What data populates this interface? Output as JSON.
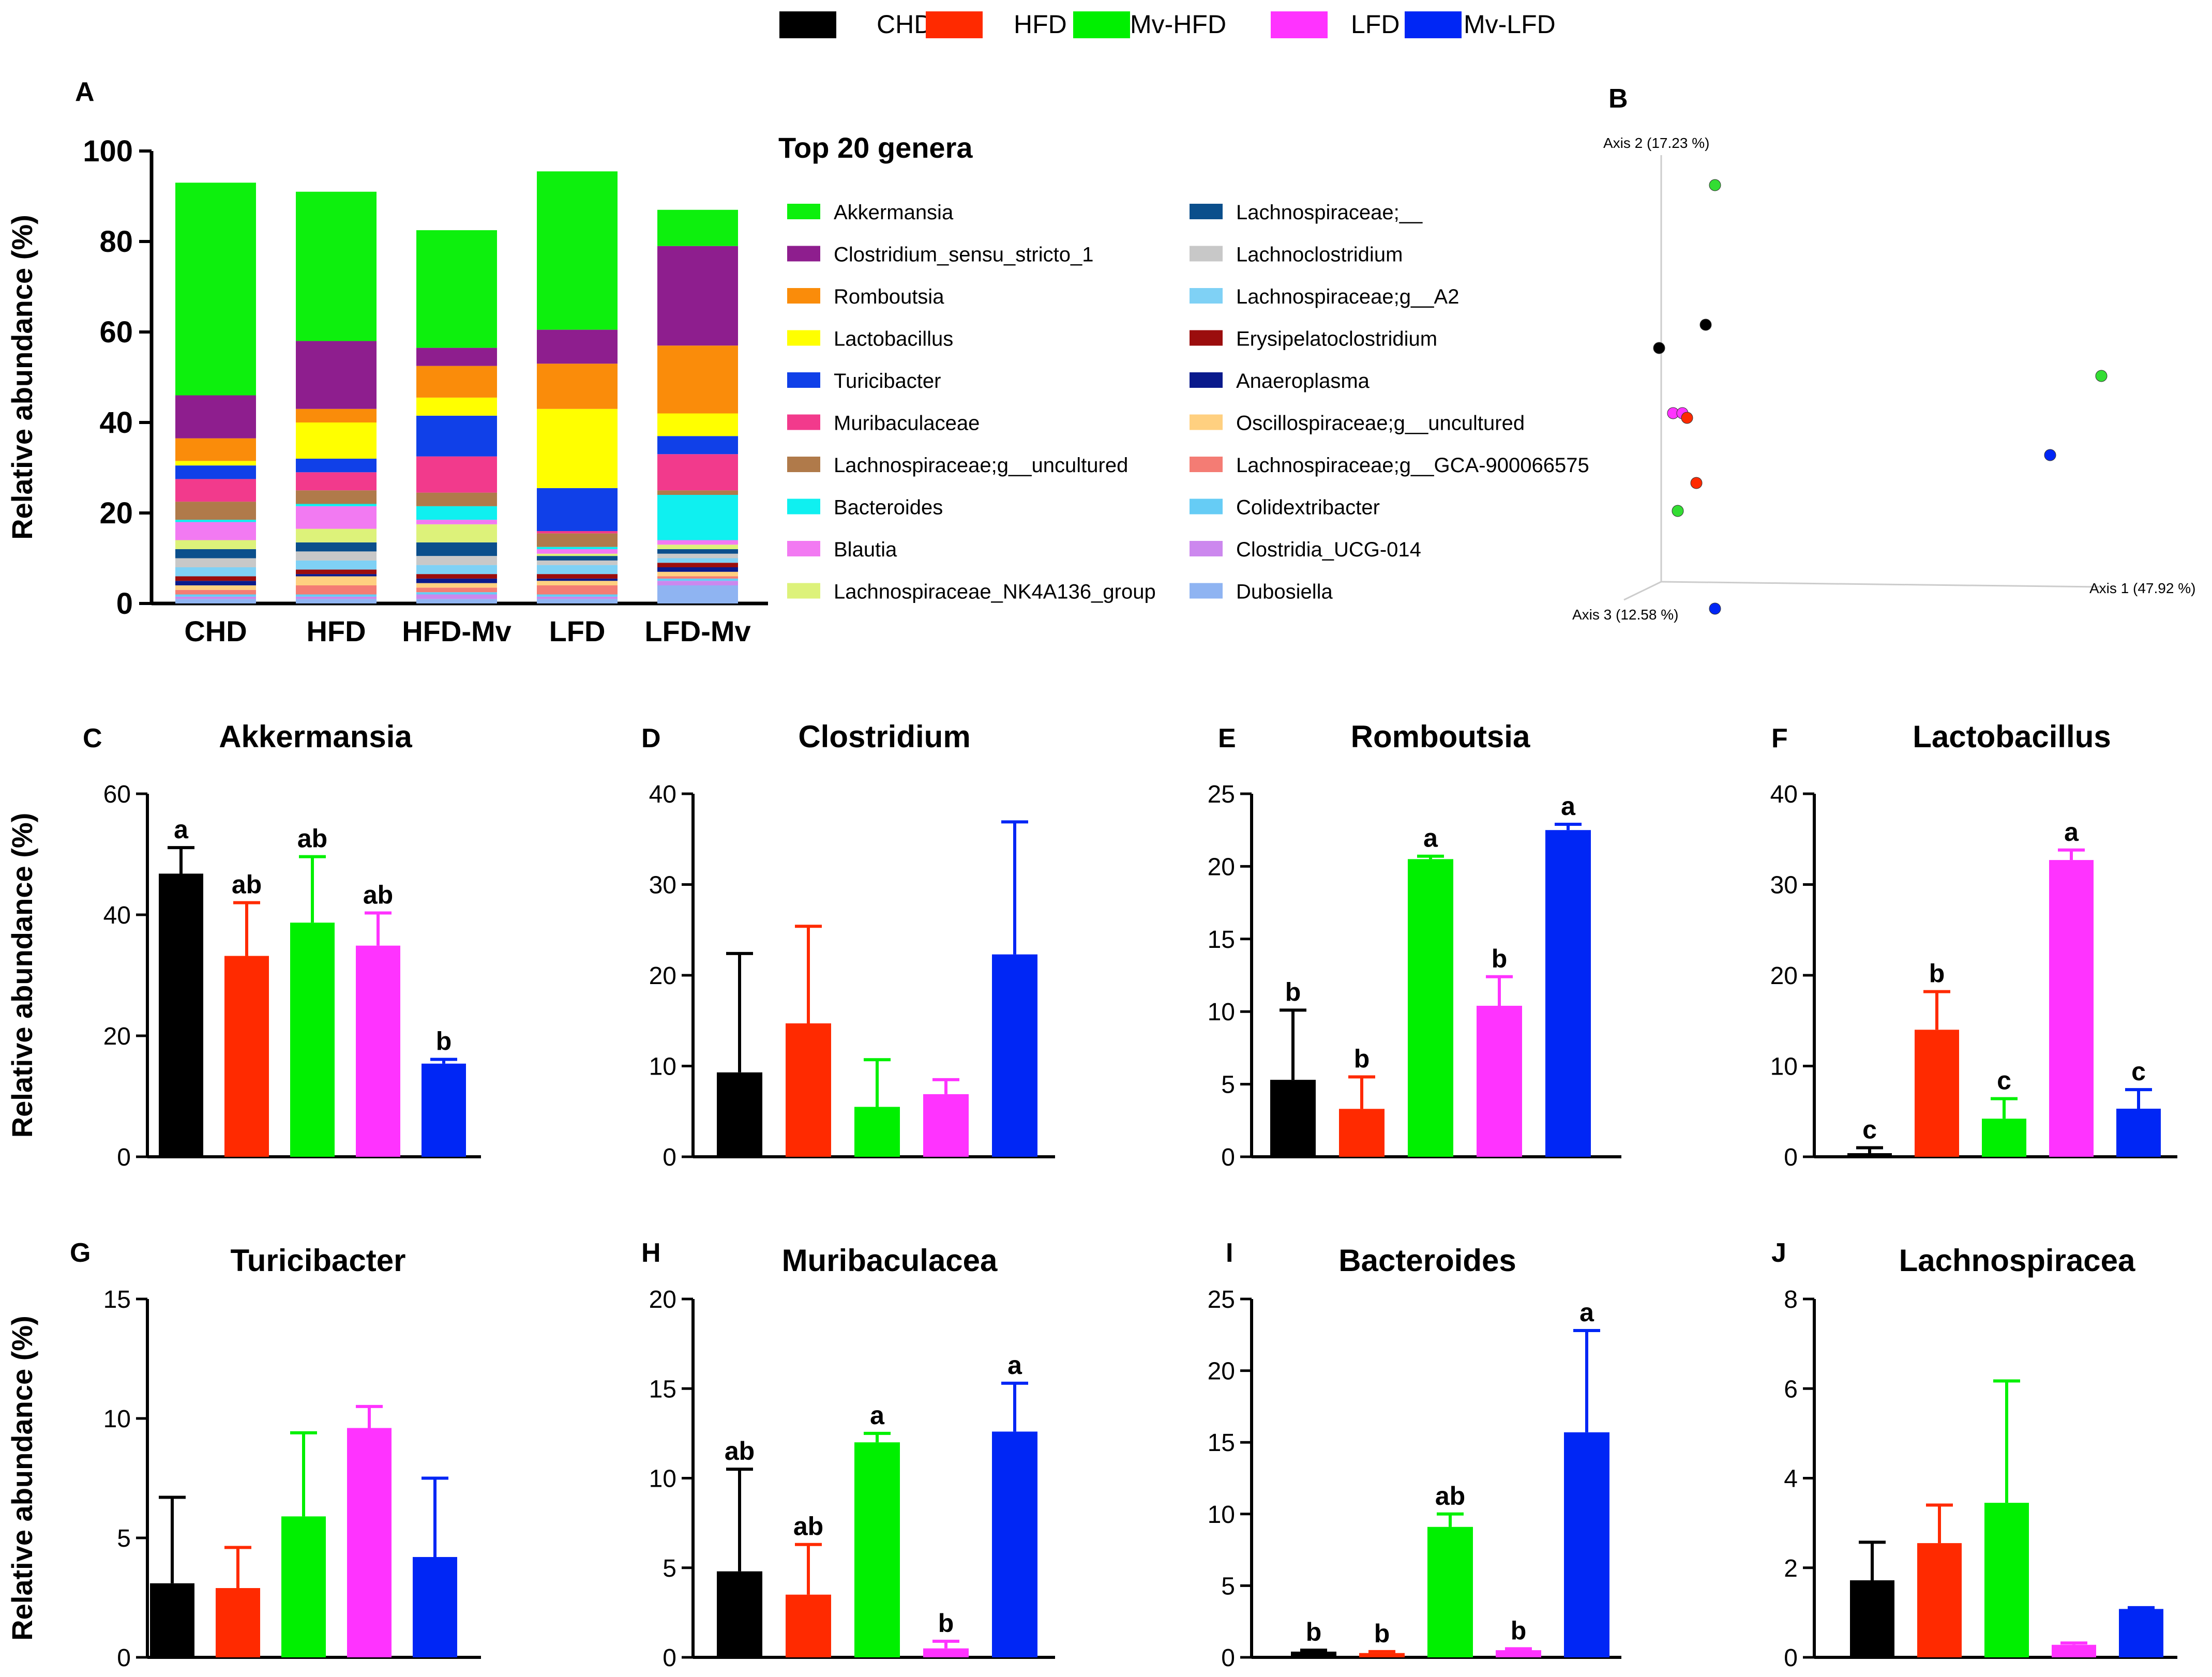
{
  "figure_legend": [
    {
      "label": "CHD",
      "color": "#000000"
    },
    {
      "label": "HFD",
      "color": "#FF2A00"
    },
    {
      "label": "Mv-HFD",
      "color": "#00F000"
    },
    {
      "label": "LFD",
      "color": "#FF33FF"
    },
    {
      "label": "Mv-LFD",
      "color": "#0026F5"
    }
  ],
  "chart_data": [
    {
      "id": "A",
      "type": "bar",
      "stacked": true,
      "panel_letter": "A",
      "title": "Top 20 genera",
      "ylabel": "Relative abundance (%)",
      "ylim": [
        0,
        100
      ],
      "yticks": [
        0,
        20,
        40,
        60,
        80,
        100
      ],
      "categories": [
        "CHD",
        "HFD",
        "HFD-Mv",
        "LFD",
        "LFD-Mv"
      ],
      "series": [
        {
          "name": "Dubosiella",
          "color": "#8FB4F2",
          "values": [
            1.0,
            1.0,
            1.0,
            1.0,
            4.0
          ]
        },
        {
          "name": "Clostridia_UCG-014",
          "color": "#CC88EE",
          "values": [
            0.5,
            0.5,
            1.0,
            0.5,
            1.0
          ]
        },
        {
          "name": "Colidextribacter",
          "color": "#66CCF5",
          "values": [
            0.5,
            0.5,
            0.5,
            0.5,
            0.5
          ]
        },
        {
          "name": "Lachnospiraceae;g__GCA-900066575",
          "color": "#F47C74",
          "values": [
            1.0,
            2.0,
            1.0,
            2.0,
            0.5
          ]
        },
        {
          "name": "Oscillospiraceae;g__uncultured",
          "color": "#FFD080",
          "values": [
            1.0,
            2.0,
            1.0,
            1.0,
            1.0
          ]
        },
        {
          "name": "Anaeroplasma",
          "color": "#0A1A8C",
          "values": [
            1.0,
            0.5,
            1.0,
            0.5,
            1.0
          ]
        },
        {
          "name": "Erysipelatoclostridium",
          "color": "#9B0D0D",
          "values": [
            1.0,
            1.0,
            1.0,
            1.0,
            1.0
          ]
        },
        {
          "name": "Lachnospiraceae;g__A2",
          "color": "#7FD1F5",
          "values": [
            2.0,
            2.0,
            2.0,
            2.0,
            1.0
          ]
        },
        {
          "name": "Lachnoclostridium",
          "color": "#C8C8C8",
          "values": [
            2.0,
            2.0,
            2.0,
            1.0,
            1.0
          ]
        },
        {
          "name": "Lachnospiraceae;__",
          "color": "#0B4F8C",
          "values": [
            2.0,
            2.0,
            3.0,
            1.0,
            1.0
          ]
        },
        {
          "name": "Lachnospiraceae_NK4A136_group",
          "color": "#DDF27A",
          "values": [
            2.0,
            3.0,
            4.0,
            0.5,
            1.0
          ]
        },
        {
          "name": "Blautia",
          "color": "#F27AF2",
          "values": [
            4.0,
            5.0,
            1.0,
            1.0,
            1.0
          ]
        },
        {
          "name": "Bacteroides",
          "color": "#0FF0F0",
          "values": [
            0.5,
            0.5,
            3.0,
            0.5,
            10.0
          ]
        },
        {
          "name": "Lachnospiraceae;g__uncultured",
          "color": "#B07A4A",
          "values": [
            4.0,
            3.0,
            3.0,
            3.0,
            1.0
          ]
        },
        {
          "name": "Muribaculaceae",
          "color": "#F23A8C",
          "values": [
            5.0,
            4.0,
            8.0,
            0.5,
            8.0
          ]
        },
        {
          "name": "Turicibacter",
          "color": "#1040E8",
          "values": [
            3.0,
            3.0,
            9.0,
            9.5,
            4.0
          ]
        },
        {
          "name": "Lactobacillus",
          "color": "#FFFF00",
          "values": [
            1.0,
            8.0,
            4.0,
            17.5,
            5.0
          ]
        },
        {
          "name": "Romboutsia",
          "color": "#FA8C0A",
          "values": [
            5.0,
            3.0,
            7.0,
            10.0,
            15.0
          ]
        },
        {
          "name": "Clostridium_sensu_stricto_1",
          "color": "#8E1E8E",
          "values": [
            9.5,
            15.0,
            4.0,
            7.5,
            22.0
          ]
        },
        {
          "name": "Akkermansia",
          "color": "#0DF00D",
          "values": [
            47.0,
            33.0,
            26.0,
            35.0,
            8.0
          ]
        }
      ]
    },
    {
      "id": "B",
      "type": "scatter",
      "panel_letter": "B",
      "axis1_label": "Axis 1 (47.92 %)",
      "axis2_label": "Axis 2 (17.23 %)",
      "axis3_label": "Axis 3 (12.58 %)",
      "points": [
        {
          "group": "Mv-HFD",
          "color": "#33DD33",
          "x": 0.12,
          "y": 0.88
        },
        {
          "group": "CHD",
          "color": "#000000",
          "x": 0.1,
          "y": 0.58
        },
        {
          "group": "CHD",
          "color": "#000000",
          "x": 0.0,
          "y": 0.53
        },
        {
          "group": "Mv-HFD",
          "color": "#33DD33",
          "x": 0.95,
          "y": 0.47
        },
        {
          "group": "LFD",
          "color": "#FF33FF",
          "x": 0.03,
          "y": 0.39
        },
        {
          "group": "LFD",
          "color": "#FF33FF",
          "x": 0.05,
          "y": 0.39
        },
        {
          "group": "HFD",
          "color": "#FF2A00",
          "x": 0.06,
          "y": 0.38
        },
        {
          "group": "Mv-LFD",
          "color": "#0026F5",
          "x": 0.84,
          "y": 0.3
        },
        {
          "group": "HFD",
          "color": "#FF2A00",
          "x": 0.08,
          "y": 0.24
        },
        {
          "group": "Mv-HFD",
          "color": "#33DD33",
          "x": 0.04,
          "y": 0.18
        },
        {
          "group": "Mv-LFD",
          "color": "#0026F5",
          "x": 0.12,
          "y": -0.03
        }
      ]
    },
    {
      "id": "C",
      "type": "bar",
      "panel_letter": "C",
      "title": "Akkermansia",
      "ylabel": "Relative abundance (%)",
      "ylim": [
        0,
        60
      ],
      "yticks": [
        0,
        20,
        40,
        60
      ],
      "categories": [
        "CHD",
        "HFD",
        "Mv-HFD",
        "LFD",
        "Mv-LFD"
      ],
      "values": [
        46.8,
        33.2,
        38.7,
        34.9,
        15.4
      ],
      "errors": [
        4.3,
        8.8,
        10.9,
        5.4,
        0.7
      ],
      "letters": [
        "a",
        "ab",
        "ab",
        "ab",
        "b"
      ]
    },
    {
      "id": "D",
      "type": "bar",
      "panel_letter": "D",
      "title": "Clostridium",
      "ylabel": "",
      "ylim": [
        0,
        40
      ],
      "yticks": [
        0,
        10,
        20,
        30,
        40
      ],
      "categories": [
        "CHD",
        "HFD",
        "Mv-HFD",
        "LFD",
        "Mv-LFD"
      ],
      "values": [
        9.3,
        14.7,
        5.5,
        6.9,
        22.3
      ],
      "errors": [
        13.1,
        10.7,
        5.2,
        1.6,
        14.6
      ],
      "letters": [
        "",
        "",
        "",
        "",
        ""
      ]
    },
    {
      "id": "E",
      "type": "bar",
      "panel_letter": "E",
      "title": "Romboutsia",
      "ylabel": "",
      "ylim": [
        0,
        25
      ],
      "yticks": [
        0,
        5,
        10,
        15,
        20,
        25
      ],
      "categories": [
        "CHD",
        "HFD",
        "Mv-HFD",
        "LFD",
        "Mv-LFD"
      ],
      "values": [
        5.3,
        3.3,
        20.5,
        10.4,
        22.5
      ],
      "errors": [
        4.8,
        2.2,
        0.2,
        2.0,
        0.4
      ],
      "letters": [
        "b",
        "b",
        "a",
        "b",
        "a"
      ]
    },
    {
      "id": "F",
      "type": "bar",
      "panel_letter": "F",
      "title": "Lactobacillus",
      "ylabel": "",
      "ylim": [
        0,
        40
      ],
      "yticks": [
        0,
        10,
        20,
        30,
        40
      ],
      "categories": [
        "CHD",
        "HFD",
        "Mv-HFD",
        "LFD",
        "Mv-LFD"
      ],
      "values": [
        0.4,
        14.0,
        4.2,
        32.7,
        5.3
      ],
      "errors": [
        0.6,
        4.2,
        2.2,
        1.1,
        2.1
      ],
      "letters": [
        "c",
        "b",
        "c",
        "a",
        "c"
      ]
    },
    {
      "id": "G",
      "type": "bar",
      "panel_letter": "G",
      "title": "Turicibacter",
      "ylabel": "Relative abundance (%)",
      "ylim": [
        0,
        15
      ],
      "yticks": [
        0,
        5,
        10,
        15
      ],
      "categories": [
        "CHD",
        "HFD",
        "Mv-HFD",
        "LFD",
        "Mv-LFD"
      ],
      "values": [
        3.1,
        2.9,
        5.9,
        9.6,
        4.2
      ],
      "errors": [
        3.6,
        1.7,
        3.5,
        0.9,
        3.3
      ],
      "letters": [
        "",
        "",
        "",
        "",
        ""
      ]
    },
    {
      "id": "H",
      "type": "bar",
      "panel_letter": "H",
      "title": "Muribaculacea",
      "ylabel": "",
      "ylim": [
        0,
        20
      ],
      "yticks": [
        0,
        5,
        10,
        15,
        20
      ],
      "categories": [
        "CHD",
        "HFD",
        "Mv-HFD",
        "LFD",
        "Mv-LFD"
      ],
      "values": [
        4.8,
        3.5,
        12.0,
        0.5,
        12.6
      ],
      "errors": [
        5.7,
        2.8,
        0.5,
        0.4,
        2.7
      ],
      "letters": [
        "ab",
        "ab",
        "a",
        "b",
        "a"
      ]
    },
    {
      "id": "I",
      "type": "bar",
      "panel_letter": "I",
      "title": "Bacteroides",
      "ylabel": "",
      "ylim": [
        0,
        25
      ],
      "yticks": [
        0,
        5,
        10,
        15,
        20,
        25
      ],
      "categories": [
        "CHD",
        "HFD",
        "Mv-HFD",
        "LFD",
        "Mv-LFD"
      ],
      "values": [
        0.4,
        0.3,
        9.1,
        0.5,
        15.7
      ],
      "errors": [
        0.1,
        0.1,
        0.9,
        0.1,
        7.1
      ],
      "letters": [
        "b",
        "b",
        "ab",
        "b",
        "a"
      ]
    },
    {
      "id": "J",
      "type": "bar",
      "panel_letter": "J",
      "title": "Lachnospiracea",
      "ylabel": "",
      "ylim": [
        0,
        8
      ],
      "yticks": [
        0,
        2,
        4,
        6,
        8
      ],
      "categories": [
        "CHD",
        "HFD",
        "Mv-HFD",
        "LFD",
        "Mv-LFD"
      ],
      "values": [
        1.72,
        2.55,
        3.45,
        0.28,
        1.08
      ],
      "errors": [
        0.85,
        0.85,
        2.72,
        0.04,
        0.03
      ],
      "letters": [
        "",
        "",
        "",
        "",
        ""
      ]
    }
  ]
}
